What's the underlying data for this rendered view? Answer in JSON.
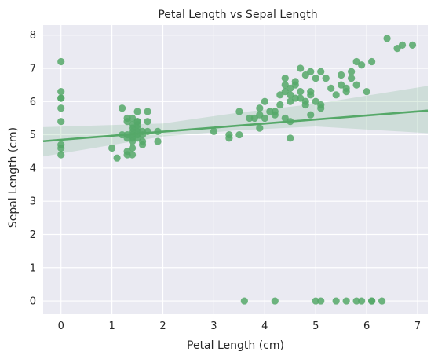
{
  "chart_data": {
    "type": "scatter",
    "title": "Petal Length vs Sepal Length",
    "xlabel": "Petal Length (cm)",
    "ylabel": "Sepal Length (cm)",
    "xlim": [
      -0.35,
      7.2
    ],
    "ylim": [
      -0.4,
      8.3
    ],
    "xticks": [
      0,
      1,
      2,
      3,
      4,
      5,
      6,
      7
    ],
    "yticks": [
      0,
      1,
      2,
      3,
      4,
      5,
      6,
      7,
      8
    ],
    "grid": true,
    "colors": {
      "background": "#eaeaf2",
      "grid": "#ffffff",
      "points": "#55a868",
      "line": "#55a868",
      "band": "#55a868"
    },
    "points": [
      [
        0,
        7.2
      ],
      [
        0,
        6.3
      ],
      [
        0,
        6.1
      ],
      [
        0,
        6.1
      ],
      [
        0,
        5.8
      ],
      [
        0,
        5.4
      ],
      [
        0,
        4.7
      ],
      [
        0,
        4.6
      ],
      [
        0,
        4.4
      ],
      [
        1.0,
        4.6
      ],
      [
        1.1,
        4.3
      ],
      [
        1.2,
        5.0
      ],
      [
        1.2,
        5.8
      ],
      [
        1.3,
        5.4
      ],
      [
        1.3,
        5.5
      ],
      [
        1.3,
        4.5
      ],
      [
        1.3,
        4.4
      ],
      [
        1.3,
        5.0
      ],
      [
        1.3,
        4.9
      ],
      [
        1.4,
        5.1
      ],
      [
        1.4,
        4.9
      ],
      [
        1.4,
        5.0
      ],
      [
        1.4,
        5.2
      ],
      [
        1.4,
        4.6
      ],
      [
        1.4,
        4.4
      ],
      [
        1.4,
        4.8
      ],
      [
        1.4,
        5.5
      ],
      [
        1.4,
        5.3
      ],
      [
        1.5,
        5.4
      ],
      [
        1.5,
        5.7
      ],
      [
        1.5,
        5.1
      ],
      [
        1.5,
        5.2
      ],
      [
        1.5,
        5.0
      ],
      [
        1.5,
        4.9
      ],
      [
        1.5,
        5.3
      ],
      [
        1.5,
        5.4
      ],
      [
        1.6,
        4.8
      ],
      [
        1.6,
        5.0
      ],
      [
        1.6,
        4.7
      ],
      [
        1.6,
        5.1
      ],
      [
        1.7,
        5.7
      ],
      [
        1.7,
        5.4
      ],
      [
        1.7,
        5.1
      ],
      [
        1.9,
        5.1
      ],
      [
        1.9,
        4.8
      ],
      [
        3.0,
        5.1
      ],
      [
        3.3,
        4.9
      ],
      [
        3.3,
        5.0
      ],
      [
        3.5,
        5.7
      ],
      [
        3.5,
        5.0
      ],
      [
        3.6,
        0
      ],
      [
        3.7,
        5.5
      ],
      [
        3.8,
        5.5
      ],
      [
        3.9,
        5.6
      ],
      [
        3.9,
        5.8
      ],
      [
        3.9,
        5.2
      ],
      [
        4.0,
        6.0
      ],
      [
        4.0,
        5.5
      ],
      [
        4.1,
        5.7
      ],
      [
        4.2,
        5.6
      ],
      [
        4.2,
        5.7
      ],
      [
        4.2,
        0
      ],
      [
        4.3,
        5.9
      ],
      [
        4.3,
        6.2
      ],
      [
        4.4,
        6.3
      ],
      [
        4.4,
        6.7
      ],
      [
        4.4,
        6.5
      ],
      [
        4.4,
        5.5
      ],
      [
        4.5,
        6.0
      ],
      [
        4.5,
        6.2
      ],
      [
        4.5,
        5.4
      ],
      [
        4.5,
        4.9
      ],
      [
        4.5,
        6.4
      ],
      [
        4.6,
        6.5
      ],
      [
        4.6,
        6.6
      ],
      [
        4.6,
        6.1
      ],
      [
        4.7,
        7.0
      ],
      [
        4.7,
        6.1
      ],
      [
        4.7,
        6.3
      ],
      [
        4.8,
        6.8
      ],
      [
        4.8,
        6.0
      ],
      [
        4.8,
        5.9
      ],
      [
        4.9,
        6.3
      ],
      [
        4.9,
        6.9
      ],
      [
        4.9,
        5.6
      ],
      [
        4.9,
        6.2
      ],
      [
        5.0,
        6.0
      ],
      [
        5.0,
        6.7
      ],
      [
        5.0,
        0
      ],
      [
        5.1,
        5.8
      ],
      [
        5.1,
        6.9
      ],
      [
        5.1,
        5.9
      ],
      [
        5.1,
        0
      ],
      [
        5.2,
        6.7
      ],
      [
        5.3,
        6.4
      ],
      [
        5.4,
        6.2
      ],
      [
        5.4,
        0
      ],
      [
        5.5,
        6.5
      ],
      [
        5.5,
        6.8
      ],
      [
        5.6,
        6.3
      ],
      [
        5.6,
        6.4
      ],
      [
        5.6,
        0
      ],
      [
        5.7,
        6.9
      ],
      [
        5.7,
        6.7
      ],
      [
        5.8,
        7.2
      ],
      [
        5.8,
        6.5
      ],
      [
        5.8,
        0
      ],
      [
        5.9,
        7.1
      ],
      [
        5.9,
        0
      ],
      [
        6.0,
        6.3
      ],
      [
        6.1,
        7.2
      ],
      [
        6.1,
        0
      ],
      [
        6.1,
        0
      ],
      [
        6.3,
        0
      ],
      [
        6.4,
        7.9
      ],
      [
        6.6,
        7.6
      ],
      [
        6.7,
        7.7
      ],
      [
        6.9,
        7.7
      ]
    ],
    "regression": {
      "intercept": 4.85,
      "slope": 0.122,
      "ci_upper": [
        [
          -0.35,
          5.23
        ],
        [
          2.0,
          5.34
        ],
        [
          3.5,
          5.67
        ],
        [
          5.0,
          5.93
        ],
        [
          7.2,
          6.47
        ]
      ],
      "ci_lower": [
        [
          -0.35,
          4.35
        ],
        [
          2.0,
          4.95
        ],
        [
          3.5,
          5.14
        ],
        [
          5.0,
          5.25
        ],
        [
          7.2,
          5.05
        ]
      ]
    }
  }
}
